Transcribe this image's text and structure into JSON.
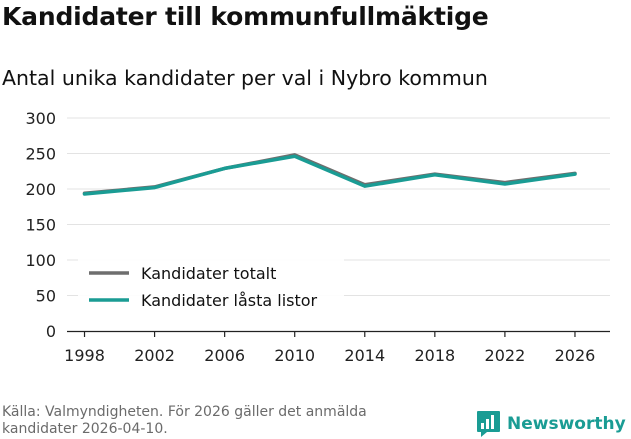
{
  "title": "Kandidater till kommunfullmäktige",
  "subtitle": "Antal unika kandidater per val i Nybro kommun",
  "source": "Källa: Valmyndigheten. För 2026 gäller det anmälda kandidater 2026-04-10.",
  "brand": {
    "name": "Newsworthy",
    "icon": "newsworthy-logo-icon",
    "color": "#1a9c94"
  },
  "chart_data": {
    "type": "line",
    "title": "Kandidater till kommunfullmäktige",
    "subtitle": "Antal unika kandidater per val i Nybro kommun",
    "xlabel": "",
    "ylabel": "",
    "x": [
      1998,
      2002,
      2006,
      2010,
      2014,
      2018,
      2022,
      2026
    ],
    "xlim": [
      1997,
      2028
    ],
    "ylim": [
      0,
      300
    ],
    "yticks": [
      0,
      50,
      100,
      150,
      200,
      250,
      300
    ],
    "xticks": [
      1998,
      2002,
      2006,
      2010,
      2014,
      2018,
      2022,
      2026
    ],
    "grid": true,
    "legend_position": "bottom-left",
    "series": [
      {
        "name": "Kandidater totalt",
        "color": "#6e6e6e",
        "values": [
          194,
          203,
          229,
          248,
          206,
          221,
          209,
          222
        ]
      },
      {
        "name": "Kandidater låsta listor",
        "color": "#1a9c94",
        "values": [
          193,
          202,
          229,
          246,
          204,
          220,
          207,
          221
        ]
      }
    ]
  }
}
